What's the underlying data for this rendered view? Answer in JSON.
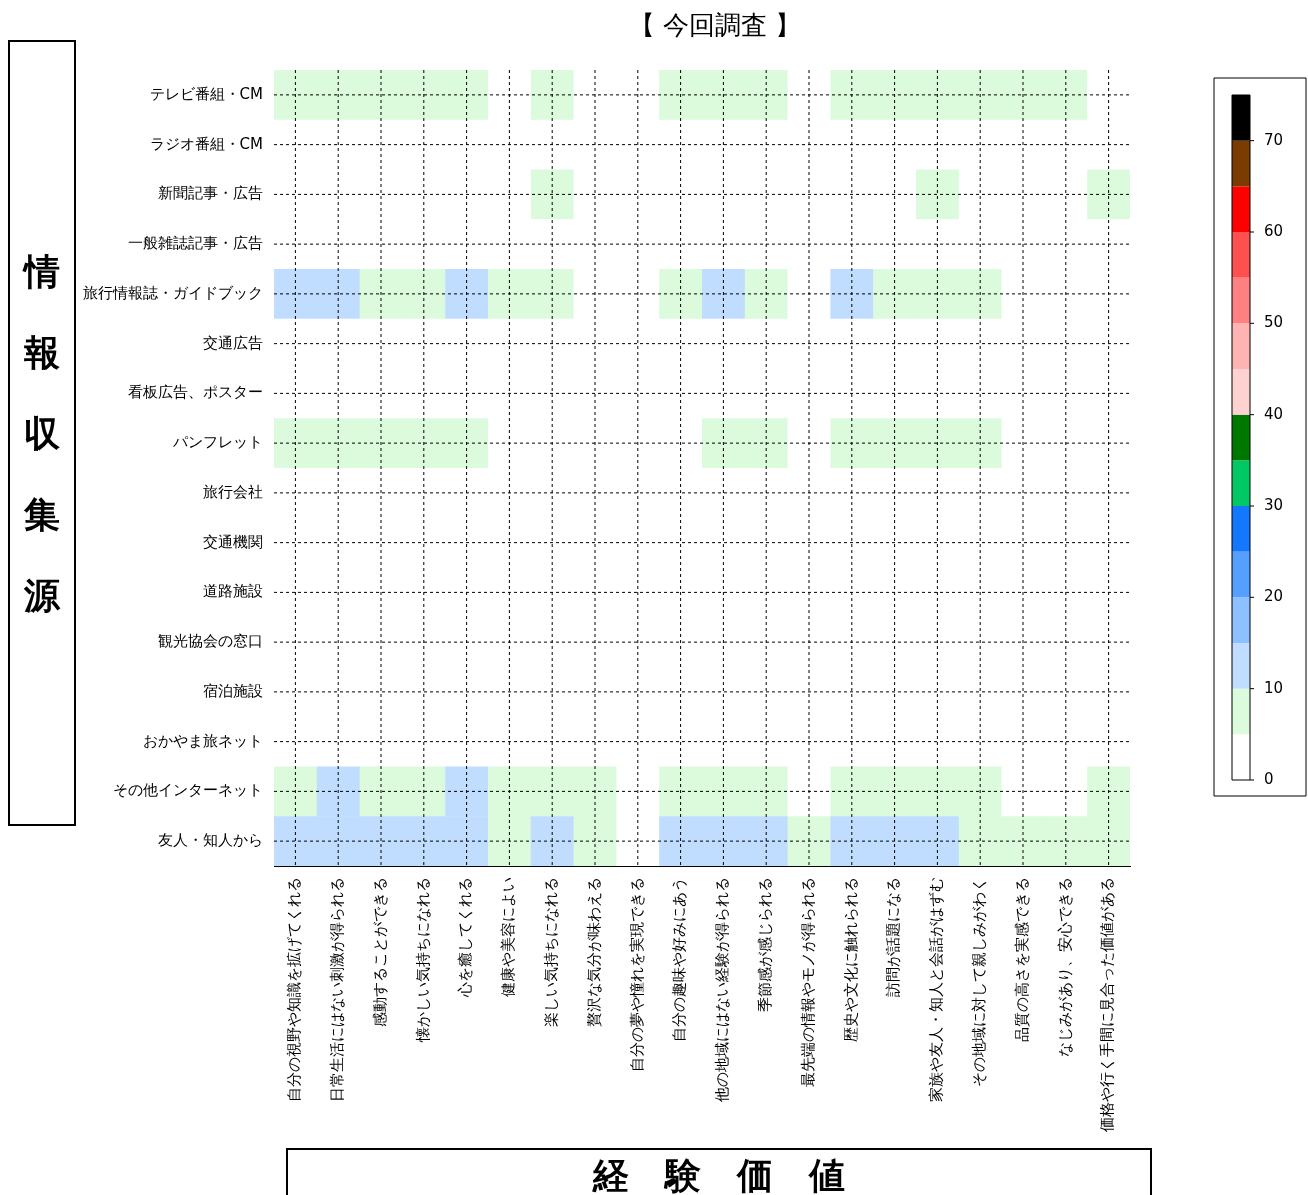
{
  "chart_data": {
    "type": "heatmap",
    "title": "【 今回調査 】",
    "xlabel": "経　験　価　値",
    "ylabel": "情報収集源",
    "categories": [
      "自分の視野や知識を拡げてくれる",
      "日常生活にはない刺激が得られる",
      "感動することができる",
      "懐かしい気持ちになれる",
      "心を癒してくれる",
      "健康や美容によい",
      "楽しい気持ちになれる",
      "贅沢な気分が味わえる",
      "自分の夢や憧れを実現できる",
      "自分の趣味や好みにあう",
      "他の地域にはない経験が得られる",
      "季節感が感じられる",
      "最先端の情報やモノが得られる",
      "歴史や文化に触れられる",
      "訪問が話題になる",
      "家族や友人・知人と会話がはずむ",
      "その地域に対して親しみがわく",
      "品質の高さを実感できる",
      "なじみがあり、安心できる",
      "価格や行く手間に見合った価値がある"
    ],
    "y_categories": [
      "テレビ番組・CM",
      "ラジオ番組・CM",
      "新聞記事・広告",
      "一般雑誌記事・広告",
      "旅行情報誌・ガイドブック",
      "交通広告",
      "看板広告、ポスター",
      "パンフレット",
      "旅行会社",
      "交通機関",
      "道路施設",
      "観光協会の窓口",
      "宿泊施設",
      "おかやま旅ネット",
      "その他インターネット",
      "友人・知人から"
    ],
    "cells": [
      [
        7,
        7,
        7,
        7,
        7,
        4,
        7,
        3,
        3,
        7,
        7,
        7,
        3,
        7,
        7,
        7,
        7,
        7,
        7,
        4
      ],
      [
        2,
        2,
        2,
        2,
        2,
        2,
        2,
        2,
        2,
        2,
        2,
        2,
        2,
        2,
        2,
        2,
        2,
        2,
        2,
        2
      ],
      [
        2,
        2,
        2,
        2,
        2,
        2,
        7,
        2,
        2,
        2,
        2,
        2,
        2,
        2,
        2,
        7,
        2,
        2,
        2,
        7
      ],
      [
        4,
        4,
        4,
        4,
        4,
        4,
        4,
        2,
        2,
        4,
        4,
        4,
        2,
        4,
        4,
        4,
        4,
        2,
        2,
        2
      ],
      [
        12,
        12,
        8,
        8,
        11,
        8,
        8,
        3,
        3,
        8,
        11,
        8,
        4,
        12,
        8,
        8,
        8,
        3,
        3,
        3
      ],
      [
        4,
        4,
        4,
        4,
        4,
        4,
        4,
        2,
        2,
        4,
        4,
        4,
        2,
        4,
        4,
        4,
        4,
        2,
        2,
        2
      ],
      [
        2,
        2,
        2,
        2,
        2,
        2,
        2,
        2,
        2,
        2,
        2,
        2,
        2,
        2,
        2,
        2,
        2,
        2,
        2,
        2
      ],
      [
        7,
        7,
        7,
        7,
        7,
        3,
        2,
        2,
        2,
        2,
        7,
        7,
        2,
        7,
        7,
        7,
        7,
        2,
        2,
        2
      ],
      [
        1,
        1,
        1,
        1,
        1,
        1,
        1,
        1,
        1,
        1,
        1,
        1,
        1,
        1,
        1,
        1,
        1,
        1,
        1,
        1
      ],
      [
        1,
        1,
        1,
        1,
        1,
        1,
        1,
        1,
        1,
        1,
        1,
        1,
        1,
        1,
        1,
        1,
        1,
        1,
        1,
        1
      ],
      [
        1,
        1,
        1,
        1,
        1,
        1,
        1,
        1,
        1,
        1,
        1,
        1,
        1,
        1,
        1,
        1,
        1,
        1,
        1,
        1
      ],
      [
        1,
        1,
        1,
        1,
        1,
        1,
        1,
        1,
        1,
        1,
        1,
        1,
        1,
        1,
        1,
        1,
        1,
        1,
        1,
        1
      ],
      [
        1,
        1,
        1,
        1,
        1,
        1,
        1,
        1,
        1,
        1,
        1,
        1,
        1,
        1,
        1,
        1,
        1,
        1,
        1,
        1
      ],
      [
        4,
        4,
        4,
        4,
        4,
        4,
        4,
        3,
        2,
        4,
        4,
        4,
        2,
        4,
        4,
        4,
        4,
        2,
        2,
        4
      ],
      [
        8,
        12,
        8,
        8,
        12,
        8,
        8,
        7,
        2,
        8,
        8,
        8,
        4,
        8,
        8,
        8,
        7,
        3,
        3,
        8
      ],
      [
        13,
        13,
        13,
        12,
        13,
        7,
        13,
        7,
        3,
        13,
        12,
        13,
        7,
        13,
        12,
        12,
        8,
        7,
        7,
        7
      ]
    ],
    "clim": [
      0,
      75
    ],
    "cticks": [
      0,
      10,
      20,
      30,
      40,
      50,
      60,
      70
    ],
    "grid": true
  }
}
